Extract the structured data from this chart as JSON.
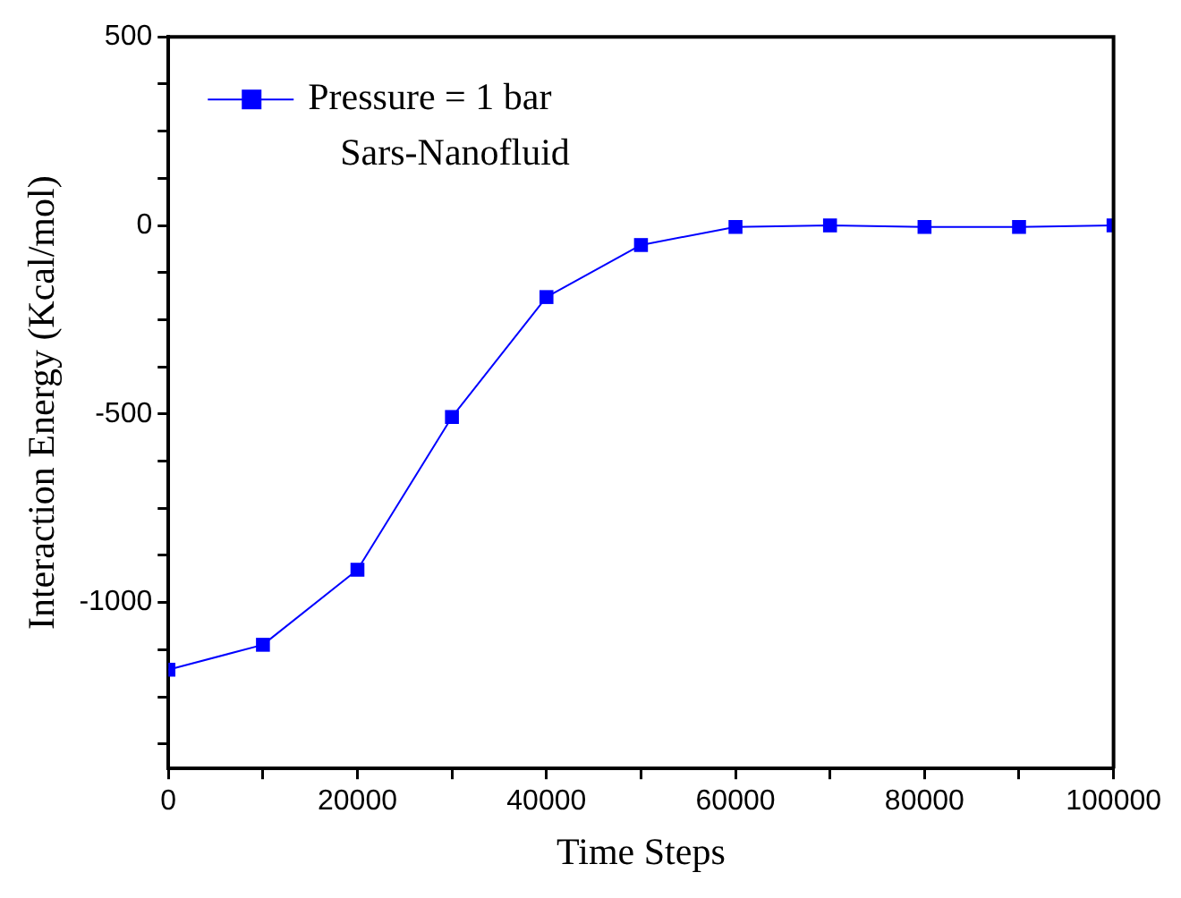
{
  "chart_data": {
    "type": "line",
    "xlabel": "Time Steps",
    "ylabel": "Interaction Energy (Kcal/mol)",
    "x": [
      0,
      10000,
      20000,
      30000,
      40000,
      50000,
      60000,
      70000,
      80000,
      90000,
      100000
    ],
    "series": [
      {
        "name": "Pressure = 1 bar",
        "color": "#0000ff",
        "values": [
          -1178,
          -1112,
          -913,
          -508,
          -190,
          -52,
          -4,
          0,
          -4,
          -4,
          0
        ]
      }
    ],
    "annotations": [
      "Sars-Nanofluid"
    ],
    "xlim": [
      0,
      100000
    ],
    "xticks": [
      0,
      {
        "value": 10000,
        "label": null
      },
      20000,
      {
        "value": 30000,
        "label": null
      },
      40000,
      {
        "value": 50000,
        "label": null
      },
      60000,
      {
        "value": 70000,
        "label": null
      },
      80000,
      {
        "value": 90000,
        "label": null
      },
      100000
    ],
    "ylim": [
      -1440,
      500
    ],
    "yticks": [
      {
        "value": -1375,
        "label": null
      },
      {
        "value": -1250,
        "label": null
      },
      {
        "value": -1125,
        "label": null
      },
      -1000,
      {
        "value": -875,
        "label": null
      },
      {
        "value": -750,
        "label": null
      },
      {
        "value": -625,
        "label": null
      },
      -500,
      {
        "value": -375,
        "label": null
      },
      {
        "value": -250,
        "label": null
      },
      {
        "value": -125,
        "label": null
      },
      0,
      {
        "value": 125,
        "label": null
      },
      {
        "value": 250,
        "label": null
      },
      {
        "value": 375,
        "label": null
      },
      500
    ],
    "grid": false,
    "legend": "top left",
    "marker": "square",
    "line_style": "solid"
  }
}
